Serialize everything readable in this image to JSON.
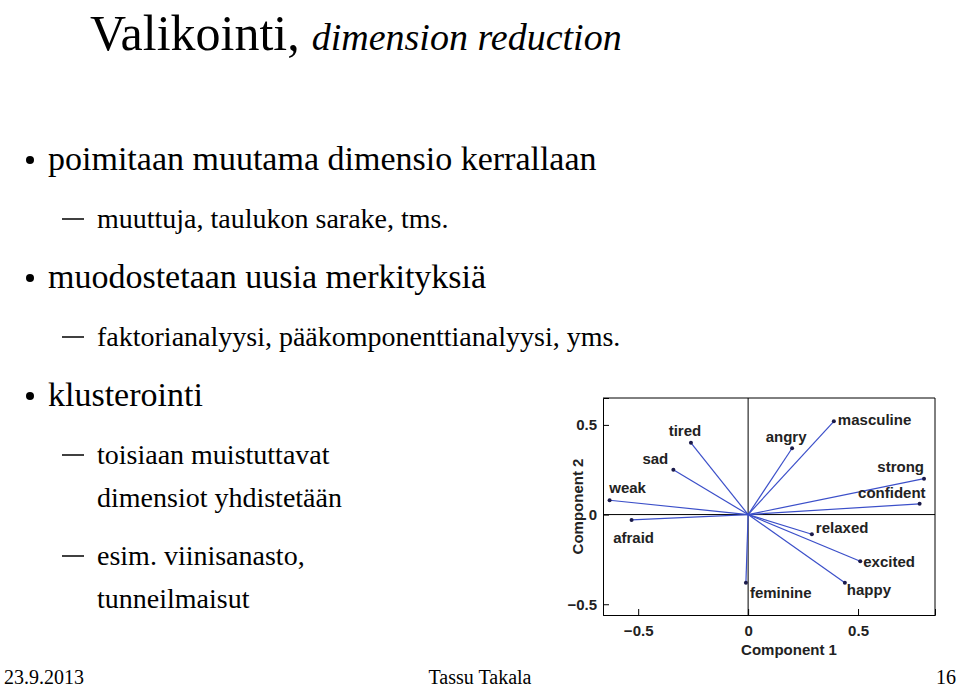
{
  "slide": {
    "title": "Valikointi,",
    "title_en": "dimension reduction",
    "bullets": [
      {
        "text": "poimitaan muutama dimensio kerrallaan",
        "sub": [
          [
            "muuttuja, taulukon sarake, tms."
          ]
        ]
      },
      {
        "text": "muodostetaan uusia merkityksiä",
        "sub": [
          [
            "faktorianalyysi, pääkomponenttianalyysi, yms."
          ]
        ]
      },
      {
        "text": "klusterointi",
        "sub": [
          [
            "toisiaan muistuttavat",
            "dimensiot yhdistetään"
          ],
          [
            "esim. viinisanasto,",
            "tunneilmaisut"
          ]
        ]
      }
    ],
    "footer": {
      "date": "23.9.2013",
      "author": "Tassu Takala",
      "page": "16"
    }
  },
  "chart_data": {
    "type": "biplot",
    "x_label": "Component 1",
    "y_label": "Component 2",
    "labels": [
      "tired",
      "sad",
      "weak",
      "afraid",
      "angry",
      "masculine",
      "strong",
      "confident",
      "relaxed",
      "excited",
      "happy",
      "feminine"
    ],
    "x": [
      -0.26,
      -0.34,
      -0.63,
      -0.53,
      0.2,
      0.39,
      0.8,
      0.78,
      0.29,
      0.51,
      0.44,
      -0.01
    ],
    "values": [
      0.4,
      0.25,
      0.08,
      -0.03,
      0.37,
      0.52,
      0.2,
      0.06,
      -0.11,
      -0.26,
      -0.38,
      -0.38
    ],
    "xlim": [
      -0.66,
      0.85
    ],
    "ylim": [
      -0.56,
      0.65
    ],
    "xticks": [
      {
        "value": -0.5,
        "label": "−0.5"
      },
      0,
      0.5
    ],
    "yticks": [
      {
        "value": -0.5,
        "label": "−0.5"
      },
      0,
      0.5
    ],
    "color": "#3b4fc9"
  }
}
